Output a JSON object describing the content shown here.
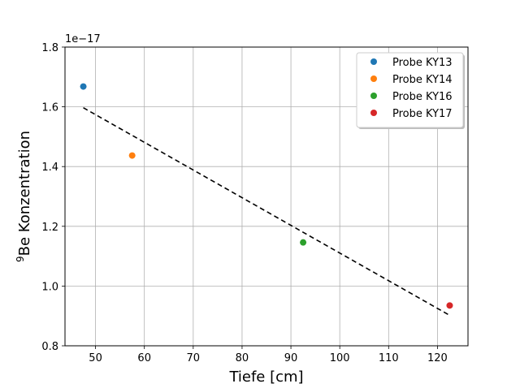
{
  "chart_data": {
    "type": "scatter",
    "xlabel": "Tiefe [cm]",
    "ylabel": "Be Konzentration",
    "ylabel_superscript": "9",
    "y_offset_text": "1e−17",
    "xlim": [
      43.75,
      126.25
    ],
    "ylim": [
      0.8,
      1.8
    ],
    "y_scale_factor": 1e-17,
    "x_ticks": [
      50,
      60,
      70,
      80,
      90,
      100,
      110,
      120
    ],
    "y_ticks": [
      0.8,
      1.0,
      1.2,
      1.4,
      1.6,
      1.8
    ],
    "y_tick_labels": [
      "0.8",
      "1.0",
      "1.2",
      "1.4",
      "1.6",
      "1.8"
    ],
    "grid": true,
    "legend_position": "top-right",
    "series": [
      {
        "name": "Probe KY13",
        "color": "#1f77b4",
        "x": [
          47.5
        ],
        "y": [
          1.668
        ]
      },
      {
        "name": "Probe KY14",
        "color": "#ff7f0e",
        "x": [
          57.5
        ],
        "y": [
          1.437
        ]
      },
      {
        "name": "Probe KY16",
        "color": "#2ca02c",
        "x": [
          92.5
        ],
        "y": [
          1.146
        ]
      },
      {
        "name": "Probe KY17",
        "color": "#d62728",
        "x": [
          122.5
        ],
        "y": [
          0.935
        ]
      }
    ],
    "fit_line": {
      "style": "dashed",
      "color": "#000000",
      "x": [
        47.5,
        122.5
      ],
      "y": [
        1.597,
        0.902
      ]
    }
  }
}
